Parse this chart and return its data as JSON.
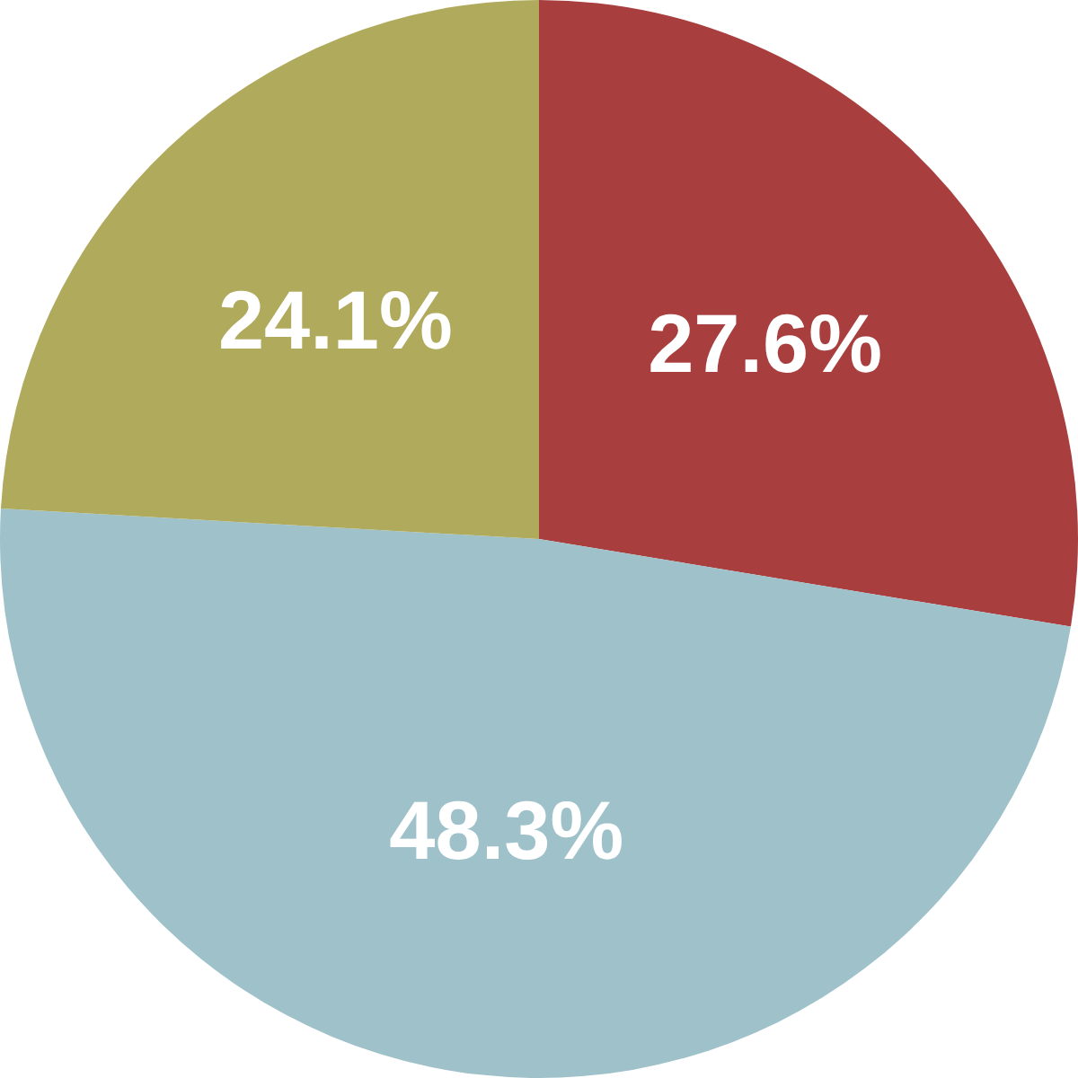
{
  "chart_data": {
    "type": "pie",
    "categories": [
      null,
      null,
      null
    ],
    "values": [
      27.6,
      48.3,
      24.1
    ],
    "colors": [
      "#a83e3e",
      "#9fc2ca",
      "#b0aa5c"
    ],
    "value_labels": [
      "27.6%",
      "48.3%",
      "24.1%"
    ]
  }
}
